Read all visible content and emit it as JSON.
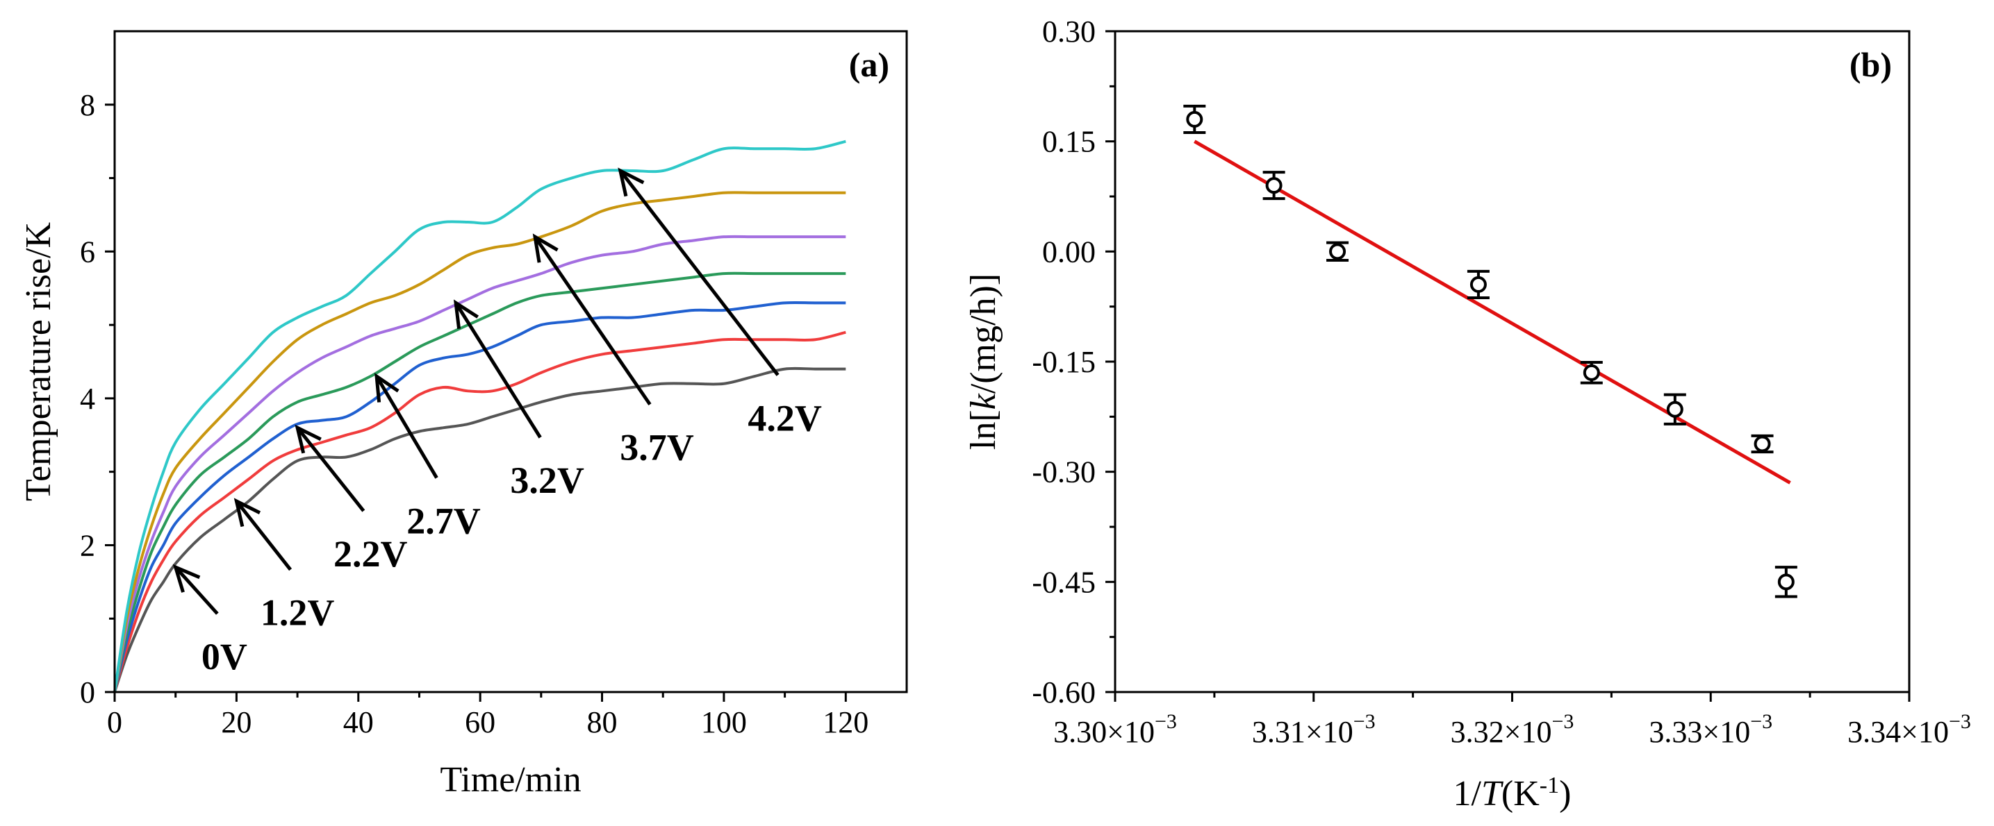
{
  "chart_data": [
    {
      "panel": "(a)",
      "type": "line",
      "xlabel": "Time/min",
      "ylabel": "Temperature rise/K",
      "xlim": [
        0,
        130
      ],
      "ylim": [
        0,
        9
      ],
      "xticks": [
        0,
        20,
        40,
        60,
        80,
        100,
        120
      ],
      "yticks": [
        0,
        2,
        4,
        6,
        8
      ],
      "x": [
        0,
        2,
        4,
        6,
        8,
        10,
        14,
        18,
        22,
        26,
        30,
        34,
        38,
        42,
        46,
        50,
        54,
        58,
        62,
        66,
        70,
        75,
        80,
        85,
        90,
        95,
        100,
        105,
        110,
        115,
        120
      ],
      "series": [
        {
          "name": "0V",
          "color": "#555555",
          "label_at": [
            10,
            1.7
          ],
          "values": [
            0,
            0.5,
            0.9,
            1.25,
            1.5,
            1.75,
            2.1,
            2.35,
            2.6,
            2.9,
            3.15,
            3.2,
            3.2,
            3.3,
            3.45,
            3.55,
            3.6,
            3.65,
            3.75,
            3.85,
            3.95,
            4.05,
            4.1,
            4.15,
            4.2,
            4.2,
            4.2,
            4.3,
            4.4,
            4.4,
            4.4
          ]
        },
        {
          "name": "1.2V",
          "color": "#f03c3c",
          "label_at": [
            20,
            2.6
          ],
          "values": [
            0,
            0.6,
            1.1,
            1.5,
            1.8,
            2.05,
            2.4,
            2.65,
            2.9,
            3.15,
            3.3,
            3.4,
            3.5,
            3.6,
            3.8,
            4.05,
            4.15,
            4.1,
            4.1,
            4.2,
            4.35,
            4.5,
            4.6,
            4.65,
            4.7,
            4.75,
            4.8,
            4.8,
            4.8,
            4.8,
            4.9
          ]
        },
        {
          "name": "2.2V",
          "color": "#2060d0",
          "label_at": [
            30,
            3.6
          ],
          "values": [
            0,
            0.7,
            1.25,
            1.7,
            2.0,
            2.3,
            2.65,
            2.95,
            3.2,
            3.45,
            3.65,
            3.7,
            3.75,
            3.95,
            4.2,
            4.45,
            4.55,
            4.6,
            4.7,
            4.85,
            5.0,
            5.05,
            5.1,
            5.1,
            5.15,
            5.2,
            5.2,
            5.25,
            5.3,
            5.3,
            5.3
          ]
        },
        {
          "name": "2.7V",
          "color": "#2a9a5a",
          "label_at": [
            43,
            4.3
          ],
          "values": [
            0,
            0.8,
            1.4,
            1.9,
            2.25,
            2.55,
            2.95,
            3.2,
            3.45,
            3.75,
            3.95,
            4.05,
            4.15,
            4.3,
            4.5,
            4.7,
            4.85,
            5.0,
            5.15,
            5.3,
            5.4,
            5.45,
            5.5,
            5.55,
            5.6,
            5.65,
            5.7,
            5.7,
            5.7,
            5.7,
            5.7
          ]
        },
        {
          "name": "3.2V",
          "color": "#a36ee0",
          "label_at": [
            56,
            5.3
          ],
          "values": [
            0,
            0.9,
            1.55,
            2.05,
            2.45,
            2.8,
            3.2,
            3.5,
            3.8,
            4.1,
            4.35,
            4.55,
            4.7,
            4.85,
            4.95,
            5.05,
            5.2,
            5.35,
            5.5,
            5.6,
            5.7,
            5.85,
            5.95,
            6.0,
            6.1,
            6.15,
            6.2,
            6.2,
            6.2,
            6.2,
            6.2
          ]
        },
        {
          "name": "3.7V",
          "color": "#c9960f",
          "label_at": [
            69,
            6.2
          ],
          "values": [
            0,
            1.0,
            1.7,
            2.25,
            2.7,
            3.05,
            3.45,
            3.8,
            4.15,
            4.5,
            4.8,
            5.0,
            5.15,
            5.3,
            5.4,
            5.55,
            5.75,
            5.95,
            6.05,
            6.1,
            6.2,
            6.35,
            6.55,
            6.65,
            6.7,
            6.75,
            6.8,
            6.8,
            6.8,
            6.8,
            6.8
          ]
        },
        {
          "name": "4.2V",
          "color": "#2ec8c8",
          "label_at": [
            83,
            7.1
          ],
          "values": [
            0,
            1.1,
            1.9,
            2.5,
            3.0,
            3.4,
            3.85,
            4.2,
            4.55,
            4.9,
            5.1,
            5.25,
            5.4,
            5.7,
            6.0,
            6.3,
            6.4,
            6.4,
            6.4,
            6.6,
            6.85,
            7.0,
            7.1,
            7.1,
            7.1,
            7.25,
            7.4,
            7.4,
            7.4,
            7.4,
            7.5
          ]
        }
      ],
      "annotations": [
        {
          "text": "0V",
          "target": [
            10,
            1.7
          ],
          "label_at": [
            18,
            0.5
          ]
        },
        {
          "text": "1.2V",
          "target": [
            20,
            2.6
          ],
          "label_at": [
            30,
            1.1
          ]
        },
        {
          "text": "2.2V",
          "target": [
            30,
            3.6
          ],
          "label_at": [
            42,
            1.9
          ]
        },
        {
          "text": "2.7V",
          "target": [
            43,
            4.3
          ],
          "label_at": [
            54,
            2.35
          ]
        },
        {
          "text": "3.2V",
          "target": [
            56,
            5.3
          ],
          "label_at": [
            71,
            2.9
          ]
        },
        {
          "text": "3.7V",
          "target": [
            69,
            6.2
          ],
          "label_at": [
            89,
            3.35
          ]
        },
        {
          "text": "4.2V",
          "target": [
            83,
            7.1
          ],
          "label_at": [
            110,
            3.75
          ]
        }
      ]
    },
    {
      "panel": "(b)",
      "type": "scatter",
      "xlabel_prefix": "1/",
      "xlabel_var": "T",
      "xlabel_unit": "(K",
      "xlabel_exp": "-1",
      "xlabel_close": ")",
      "ylabel_prefix": "ln[",
      "ylabel_var": "k",
      "ylabel_suffix": "/(mg/h)]",
      "xlim": [
        0.0033,
        0.00334
      ],
      "ylim": [
        -0.6,
        0.3
      ],
      "xticks": [
        {
          "value": 0.0033,
          "mantissa": "3.30×10",
          "exp": "−3"
        },
        {
          "value": 0.00331,
          "mantissa": "3.31×10",
          "exp": "−3"
        },
        {
          "value": 0.00332,
          "mantissa": "3.32×10",
          "exp": "−3"
        },
        {
          "value": 0.00333,
          "mantissa": "3.33×10",
          "exp": "−3"
        },
        {
          "value": 0.00334,
          "mantissa": "3.34×10",
          "exp": "−3"
        }
      ],
      "yticks": [
        {
          "value": 0.3,
          "label": "0.30"
        },
        {
          "value": 0.15,
          "label": "0.15"
        },
        {
          "value": 0.0,
          "label": "0.00"
        },
        {
          "value": -0.15,
          "label": "-0.15"
        },
        {
          "value": -0.3,
          "label": "-0.30"
        },
        {
          "value": -0.45,
          "label": "-0.45"
        },
        {
          "value": -0.6,
          "label": "-0.60"
        }
      ],
      "points": [
        {
          "x": 0.003304,
          "y": 0.18,
          "err": 0.018
        },
        {
          "x": 0.003308,
          "y": 0.09,
          "err": 0.018
        },
        {
          "x": 0.0033112,
          "y": 0.0,
          "err": 0.012
        },
        {
          "x": 0.0033183,
          "y": -0.045,
          "err": 0.018
        },
        {
          "x": 0.003324,
          "y": -0.165,
          "err": 0.014
        },
        {
          "x": 0.0033282,
          "y": -0.215,
          "err": 0.02
        },
        {
          "x": 0.0033326,
          "y": -0.262,
          "err": 0.011
        },
        {
          "x": 0.0033338,
          "y": -0.45,
          "err": 0.02
        }
      ],
      "fit_line": {
        "x": [
          0.003304,
          0.003334
        ],
        "y": [
          0.15,
          -0.315
        ],
        "color": "#e01010"
      }
    }
  ]
}
